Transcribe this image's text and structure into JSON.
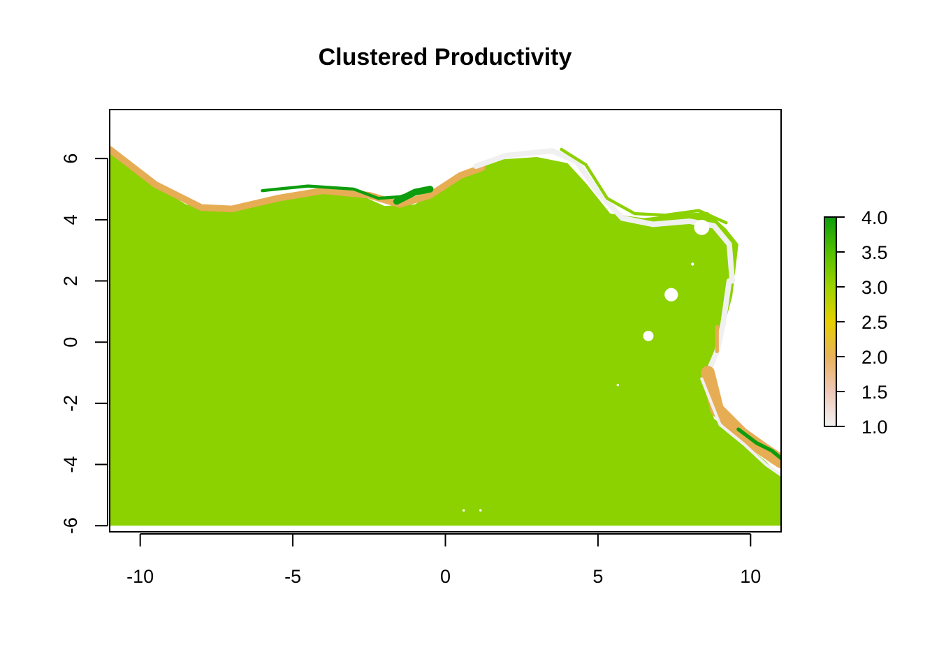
{
  "chart_data": {
    "type": "heatmap",
    "title": "Clustered Productivity",
    "xlabel": "",
    "ylabel": "",
    "xlim": [
      -11,
      11
    ],
    "ylim": [
      -6.2,
      7.6
    ],
    "x_ticks": [
      -10,
      -5,
      0,
      5,
      10
    ],
    "y_ticks": [
      -6,
      -4,
      -2,
      0,
      2,
      4,
      6
    ],
    "x_tick_labels": [
      "-10",
      "-5",
      "0",
      "5",
      "10"
    ],
    "y_tick_labels": [
      "-6",
      "-4",
      "-2",
      "0",
      "2",
      "4",
      "6"
    ],
    "value_range": [
      1,
      4
    ],
    "legend": {
      "placement": "right",
      "ticks": [
        1.0,
        1.5,
        2.0,
        2.5,
        3.0,
        3.5,
        4.0
      ],
      "tick_labels": [
        "1.0",
        "1.5",
        "2.0",
        "2.5",
        "3.0",
        "3.5",
        "4.0"
      ],
      "colors": [
        "#f2f2f2",
        "#efc8b8",
        "#e8b25a",
        "#e6d000",
        "#9ed200",
        "#52c000",
        "#0e9c0e"
      ]
    },
    "classes": [
      {
        "value": 1,
        "color": "#f0f0f0"
      },
      {
        "value": 2,
        "color": "#e6ad55"
      },
      {
        "value": 3,
        "color": "#8cd100"
      },
      {
        "value": 4,
        "color": "#0d9d0d"
      }
    ],
    "dominant_value": 3,
    "land_boundary_top": [
      [
        -11,
        6.25
      ],
      [
        -10.5,
        5.85
      ],
      [
        -9.5,
        5.1
      ],
      [
        -8.5,
        4.5
      ],
      [
        -7.5,
        4.3
      ],
      [
        -6,
        4.6
      ],
      [
        -4.5,
        4.95
      ],
      [
        -3,
        4.9
      ],
      [
        -2,
        4.45
      ],
      [
        -1,
        4.5
      ],
      [
        0,
        5.15
      ],
      [
        1.5,
        5.95
      ],
      [
        3,
        6.05
      ],
      [
        4,
        5.85
      ],
      [
        4.6,
        5.2
      ],
      [
        5.4,
        4.2
      ],
      [
        6.5,
        4.05
      ],
      [
        7.8,
        4.2
      ],
      [
        8.6,
        4.25
      ],
      [
        9.2,
        3.7
      ],
      [
        9.6,
        3.2
      ],
      [
        9.4,
        1.5
      ],
      [
        9.1,
        0.4
      ],
      [
        8.8,
        -0.6
      ],
      [
        8.5,
        -1.3
      ],
      [
        8.8,
        -2.5
      ],
      [
        9.8,
        -3.3
      ],
      [
        10.5,
        -3.9
      ],
      [
        11,
        -4.4
      ]
    ],
    "bands": [
      {
        "value": 2,
        "path": [
          [
            -11,
            6.3
          ],
          [
            -9.5,
            5.15
          ],
          [
            -8,
            4.4
          ],
          [
            -7,
            4.35
          ],
          [
            -5.5,
            4.7
          ],
          [
            -4,
            4.95
          ],
          [
            -2.5,
            4.8
          ],
          [
            -1.5,
            4.5
          ],
          [
            -0.5,
            4.8
          ],
          [
            0.5,
            5.45
          ],
          [
            1.2,
            5.7
          ]
        ],
        "width": 0.22
      },
      {
        "value": 1,
        "path": [
          [
            1,
            5.75
          ],
          [
            2,
            6.1
          ],
          [
            3.5,
            6.25
          ],
          [
            4.3,
            5.9
          ],
          [
            5,
            4.9
          ],
          [
            5.8,
            4.05
          ],
          [
            6.8,
            3.85
          ],
          [
            8,
            3.95
          ],
          [
            8.8,
            3.8
          ],
          [
            9.3,
            3.2
          ],
          [
            9.4,
            2.0
          ]
        ],
        "width": 0.18
      },
      {
        "value": 3,
        "path": [
          [
            3.8,
            6.3
          ],
          [
            4.6,
            5.8
          ],
          [
            5.3,
            4.7
          ],
          [
            6.2,
            4.2
          ],
          [
            7.2,
            4.15
          ],
          [
            8.3,
            4.3
          ],
          [
            9.2,
            3.9
          ]
        ],
        "width": 0.1
      },
      {
        "value": 4,
        "path": [
          [
            -6,
            4.95
          ],
          [
            -4.5,
            5.1
          ],
          [
            -3,
            5.0
          ],
          [
            -2.2,
            4.7
          ],
          [
            -1.5,
            4.75
          ],
          [
            -0.8,
            4.95
          ]
        ],
        "width": 0.1
      },
      {
        "value": 4,
        "path": [
          [
            -1.6,
            4.6
          ],
          [
            -1.0,
            4.9
          ],
          [
            -0.5,
            5.0
          ]
        ],
        "width": 0.22
      },
      {
        "value": 1,
        "path": [
          [
            9.3,
            2.0
          ],
          [
            9.1,
            0.6
          ],
          [
            8.9,
            -0.3
          ],
          [
            8.6,
            -1.0
          ]
        ],
        "width": 0.18
      },
      {
        "value": 2,
        "path": [
          [
            8.9,
            0.5
          ],
          [
            8.9,
            -0.3
          ]
        ],
        "width": 0.12
      },
      {
        "value": 2,
        "path": [
          [
            8.6,
            -1.0
          ],
          [
            8.9,
            -2.2
          ],
          [
            9.7,
            -3.0
          ],
          [
            10.4,
            -3.5
          ],
          [
            11,
            -3.9
          ]
        ],
        "width": 0.45
      },
      {
        "value": 4,
        "path": [
          [
            9.6,
            -2.85
          ],
          [
            10.2,
            -3.3
          ],
          [
            10.7,
            -3.55
          ],
          [
            11,
            -3.8
          ]
        ],
        "width": 0.12
      },
      {
        "value": 1,
        "path": [
          [
            8.4,
            -1.2
          ],
          [
            9.0,
            -2.7
          ],
          [
            9.8,
            -3.35
          ],
          [
            10.5,
            -4.0
          ],
          [
            11,
            -4.35
          ]
        ],
        "width": 0.1
      }
    ],
    "holes": [
      {
        "x": 7.4,
        "y": 1.55,
        "r": 0.22
      },
      {
        "x": 6.65,
        "y": 0.2,
        "r": 0.17
      },
      {
        "x": 8.4,
        "y": 3.75,
        "r": 0.25
      },
      {
        "x": 8.1,
        "y": 2.55,
        "r": 0.05
      },
      {
        "x": 5.65,
        "y": -1.4,
        "r": 0.04
      },
      {
        "x": 0.6,
        "y": -5.5,
        "r": 0.04
      },
      {
        "x": 1.15,
        "y": -5.5,
        "r": 0.04
      }
    ]
  }
}
